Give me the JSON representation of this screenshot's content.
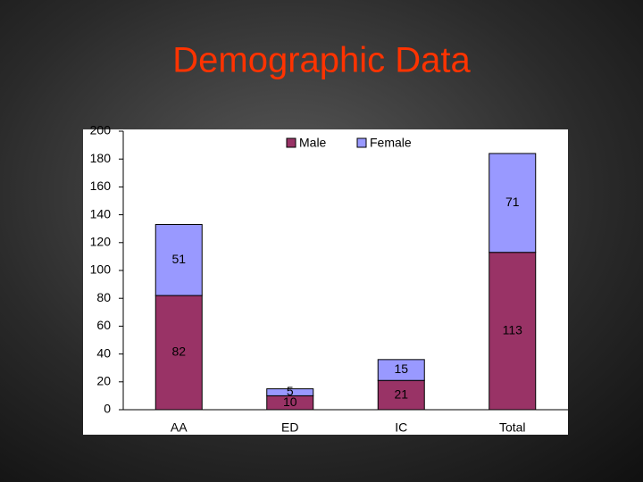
{
  "chart_data": {
    "type": "stacked_bar",
    "title": "Demographic Data",
    "categories": [
      "AA",
      "ED",
      "IC",
      "Total"
    ],
    "series": [
      {
        "name": "Male",
        "color": "#993366",
        "values": [
          82,
          10,
          21,
          113
        ]
      },
      {
        "name": "Female",
        "color": "#9999ff",
        "values": [
          51,
          5,
          15,
          71
        ]
      }
    ],
    "ylim": [
      0,
      200
    ],
    "yticks": [
      0,
      20,
      40,
      60,
      80,
      100,
      120,
      140,
      160,
      180,
      200
    ],
    "grid": false,
    "legend": "top"
  }
}
